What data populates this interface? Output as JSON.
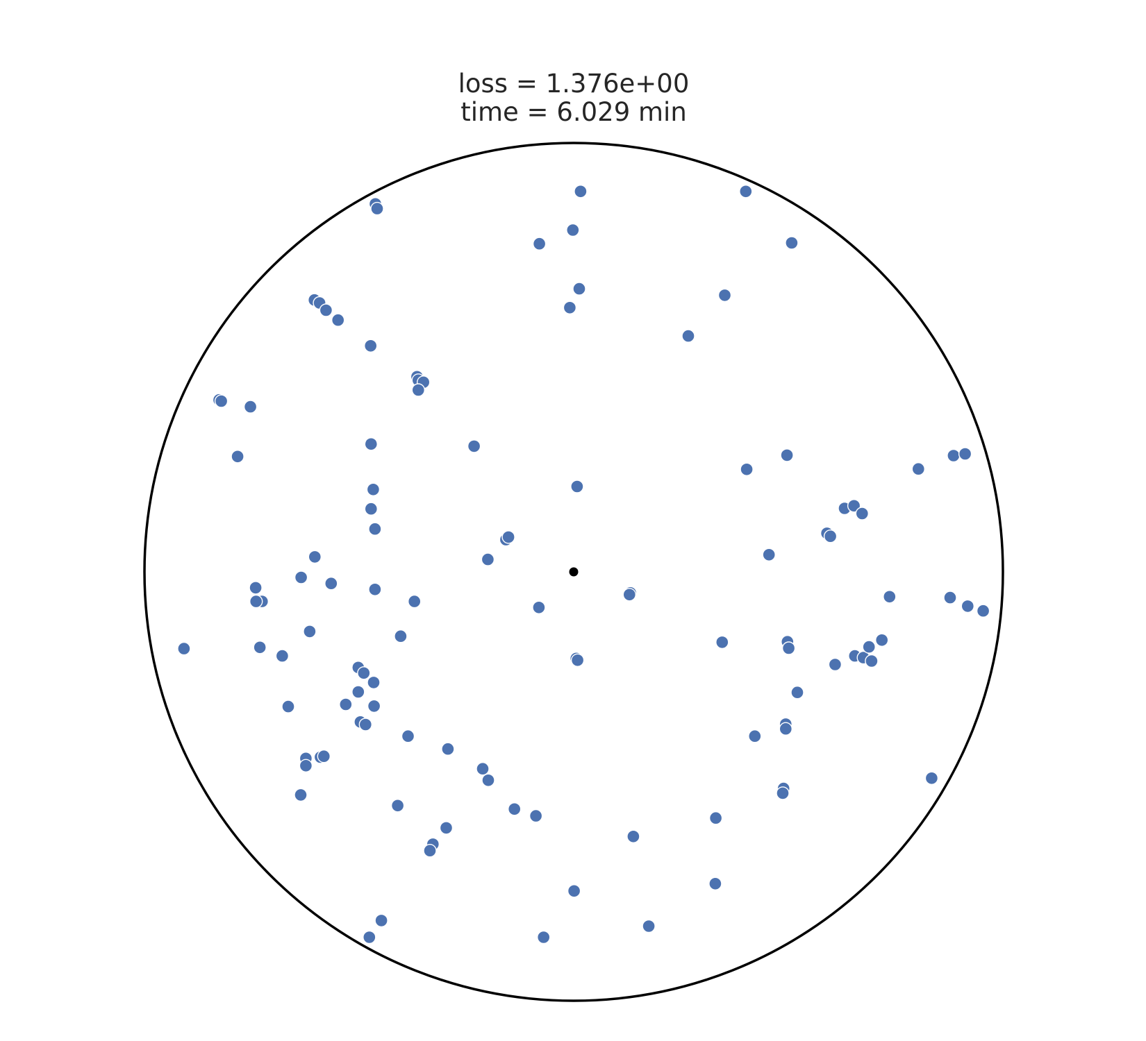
{
  "chart_data": {
    "type": "scatter",
    "title_lines": [
      "loss = 1.376e+00",
      "time = 6.029 min"
    ],
    "xlim": [
      -1,
      1
    ],
    "ylim": [
      -1,
      1
    ],
    "aspect": "equal",
    "grid": false,
    "boundary": "unit-circle",
    "center_marker": {
      "x": 0.0,
      "y": 0.0,
      "color": "#000000"
    },
    "series": [
      {
        "color": "#4c72b0",
        "points": [
          {
            "x": -0.462,
            "y": 0.858
          },
          {
            "x": -0.458,
            "y": 0.847
          },
          {
            "x": 0.016,
            "y": 0.887
          },
          {
            "x": 0.401,
            "y": 0.887
          },
          {
            "x": -0.08,
            "y": 0.765
          },
          {
            "x": -0.002,
            "y": 0.797
          },
          {
            "x": 0.507,
            "y": 0.765
          },
          {
            "x": 0.508,
            "y": 0.767
          },
          {
            "x": 0.013,
            "y": 0.66
          },
          {
            "x": -0.009,
            "y": 0.616
          },
          {
            "x": 0.352,
            "y": 0.645
          },
          {
            "x": 0.267,
            "y": 0.55
          },
          {
            "x": -0.604,
            "y": 0.634
          },
          {
            "x": -0.592,
            "y": 0.627
          },
          {
            "x": -0.577,
            "y": 0.61
          },
          {
            "x": -0.549,
            "y": 0.587
          },
          {
            "x": -0.473,
            "y": 0.527
          },
          {
            "x": -0.365,
            "y": 0.455
          },
          {
            "x": -0.362,
            "y": 0.447
          },
          {
            "x": -0.35,
            "y": 0.442
          },
          {
            "x": -0.362,
            "y": 0.424
          },
          {
            "x": -0.826,
            "y": 0.401
          },
          {
            "x": -0.821,
            "y": 0.398
          },
          {
            "x": -0.753,
            "y": 0.385
          },
          {
            "x": -0.783,
            "y": 0.269
          },
          {
            "x": -0.472,
            "y": 0.298
          },
          {
            "x": -0.232,
            "y": 0.293
          },
          {
            "x": 0.497,
            "y": 0.272
          },
          {
            "x": 0.403,
            "y": 0.239
          },
          {
            "x": 0.803,
            "y": 0.24
          },
          {
            "x": 0.885,
            "y": 0.271
          },
          {
            "x": 0.912,
            "y": 0.275
          },
          {
            "x": 0.008,
            "y": 0.199
          },
          {
            "x": -0.467,
            "y": 0.192
          },
          {
            "x": -0.472,
            "y": 0.147
          },
          {
            "x": -0.463,
            "y": 0.1
          },
          {
            "x": 0.631,
            "y": 0.148
          },
          {
            "x": 0.653,
            "y": 0.154
          },
          {
            "x": 0.672,
            "y": 0.136
          },
          {
            "x": 0.59,
            "y": 0.09
          },
          {
            "x": 0.598,
            "y": 0.083
          },
          {
            "x": -0.158,
            "y": 0.075
          },
          {
            "x": -0.152,
            "y": 0.081
          },
          {
            "x": -0.2,
            "y": 0.029
          },
          {
            "x": -0.603,
            "y": 0.035
          },
          {
            "x": -0.635,
            "y": -0.013
          },
          {
            "x": -0.565,
            "y": -0.027
          },
          {
            "x": -0.463,
            "y": -0.041
          },
          {
            "x": -0.741,
            "y": -0.037
          },
          {
            "x": 0.455,
            "y": 0.04
          },
          {
            "x": -0.371,
            "y": -0.069
          },
          {
            "x": -0.726,
            "y": -0.069
          },
          {
            "x": -0.74,
            "y": -0.069
          },
          {
            "x": 0.132,
            "y": -0.049
          },
          {
            "x": 0.13,
            "y": -0.053
          },
          {
            "x": -0.081,
            "y": -0.083
          },
          {
            "x": 0.736,
            "y": -0.058
          },
          {
            "x": 0.877,
            "y": -0.06
          },
          {
            "x": 0.918,
            "y": -0.08
          },
          {
            "x": 0.954,
            "y": -0.091
          },
          {
            "x": -0.615,
            "y": -0.139
          },
          {
            "x": -0.403,
            "y": -0.15
          },
          {
            "x": -0.731,
            "y": -0.176
          },
          {
            "x": -0.679,
            "y": -0.196
          },
          {
            "x": -0.908,
            "y": -0.179
          },
          {
            "x": 0.346,
            "y": -0.164
          },
          {
            "x": 0.498,
            "y": -0.163
          },
          {
            "x": 0.501,
            "y": -0.178
          },
          {
            "x": 0.655,
            "y": -0.196
          },
          {
            "x": 0.675,
            "y": -0.2
          },
          {
            "x": 0.718,
            "y": -0.159
          },
          {
            "x": 0.688,
            "y": -0.175
          },
          {
            "x": 0.694,
            "y": -0.208
          },
          {
            "x": 0.609,
            "y": -0.216
          },
          {
            "x": 0.006,
            "y": -0.202
          },
          {
            "x": 0.009,
            "y": -0.206
          },
          {
            "x": -0.502,
            "y": -0.223
          },
          {
            "x": -0.489,
            "y": -0.236
          },
          {
            "x": -0.466,
            "y": -0.258
          },
          {
            "x": -0.502,
            "y": -0.28
          },
          {
            "x": -0.531,
            "y": -0.309
          },
          {
            "x": -0.465,
            "y": -0.313
          },
          {
            "x": -0.665,
            "y": -0.314
          },
          {
            "x": -0.497,
            "y": -0.35
          },
          {
            "x": -0.485,
            "y": -0.356
          },
          {
            "x": -0.386,
            "y": -0.383
          },
          {
            "x": 0.521,
            "y": -0.281
          },
          {
            "x": 0.494,
            "y": -0.355
          },
          {
            "x": 0.494,
            "y": -0.366
          },
          {
            "x": 0.422,
            "y": -0.383
          },
          {
            "x": -0.293,
            "y": -0.413
          },
          {
            "x": -0.624,
            "y": -0.435
          },
          {
            "x": -0.59,
            "y": -0.432
          },
          {
            "x": -0.582,
            "y": -0.43
          },
          {
            "x": -0.624,
            "y": -0.452
          },
          {
            "x": -0.212,
            "y": -0.459
          },
          {
            "x": -0.199,
            "y": -0.486
          },
          {
            "x": 0.834,
            "y": -0.481
          },
          {
            "x": 0.489,
            "y": -0.505
          },
          {
            "x": 0.487,
            "y": -0.516
          },
          {
            "x": -0.636,
            "y": -0.52
          },
          {
            "x": -0.41,
            "y": -0.545
          },
          {
            "x": -0.138,
            "y": -0.553
          },
          {
            "x": -0.088,
            "y": -0.569
          },
          {
            "x": 0.331,
            "y": -0.574
          },
          {
            "x": 0.139,
            "y": -0.617
          },
          {
            "x": -0.297,
            "y": -0.597
          },
          {
            "x": -0.328,
            "y": -0.635
          },
          {
            "x": -0.335,
            "y": -0.65
          },
          {
            "x": 0.001,
            "y": -0.744
          },
          {
            "x": 0.33,
            "y": -0.727
          },
          {
            "x": -0.448,
            "y": -0.813
          },
          {
            "x": -0.476,
            "y": -0.852
          },
          {
            "x": -0.07,
            "y": -0.852
          },
          {
            "x": 0.175,
            "y": -0.826
          }
        ]
      }
    ]
  }
}
